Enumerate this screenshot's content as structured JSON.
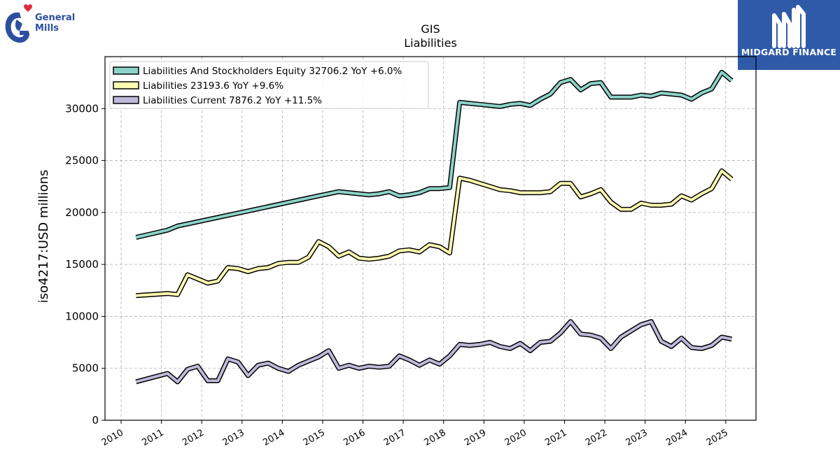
{
  "brand": {
    "left_logo_line1": "General",
    "left_logo_line2": "Mills",
    "right_logo_text": "MIDGARD FINANCE"
  },
  "chart_data": {
    "type": "line",
    "title": "GIS",
    "subtitle": "Liabilities",
    "xlabel": "",
    "ylabel": "iso4217:USD  millions",
    "xlim": [
      2009.6,
      2025.75
    ],
    "ylim": [
      0,
      35000
    ],
    "yticks": [
      0,
      5000,
      10000,
      15000,
      20000,
      25000,
      30000
    ],
    "ytick_labels": [
      "0",
      "5000",
      "10000",
      "15000",
      "20000",
      "25000",
      "30000"
    ],
    "xticks": [
      2010,
      2011,
      2012,
      2013,
      2014,
      2015,
      2016,
      2017,
      2018,
      2019,
      2020,
      2021,
      2022,
      2023,
      2024,
      2025
    ],
    "xtick_labels": [
      "2010",
      "2011",
      "2012",
      "2013",
      "2014",
      "2015",
      "2016",
      "2017",
      "2018",
      "2019",
      "2020",
      "2021",
      "2022",
      "2023",
      "2024",
      "2025"
    ],
    "grid": true,
    "legend_position": "top-left",
    "series": [
      {
        "name": "Liabilities And Stockholders Equity  32706.2 YoY +6.0%",
        "color": "#8dd3c7",
        "x": [
          2010.37,
          2011.15,
          2011.4,
          2011.65,
          2014.9,
          2015.4,
          2015.65,
          2015.9,
          2016.15,
          2016.4,
          2016.65,
          2016.9,
          2017.15,
          2017.4,
          2017.65,
          2017.9,
          2018.15,
          2018.4,
          2018.65,
          2018.9,
          2019.15,
          2019.4,
          2019.65,
          2019.9,
          2020.15,
          2020.4,
          2020.65,
          2020.9,
          2021.15,
          2021.4,
          2021.65,
          2021.9,
          2022.15,
          2022.4,
          2022.65,
          2022.9,
          2023.15,
          2023.4,
          2023.65,
          2023.9,
          2024.15,
          2024.4,
          2024.65,
          2024.9,
          2025.15
        ],
        "y": [
          17600,
          18300,
          18700,
          18900,
          21600,
          22000,
          21900,
          21800,
          21700,
          21800,
          22000,
          21600,
          21700,
          21900,
          22300,
          22300,
          22400,
          30600,
          30500,
          30400,
          30300,
          30200,
          30400,
          30500,
          30300,
          30900,
          31400,
          32500,
          32800,
          31800,
          32400,
          32500,
          31100,
          31100,
          31100,
          31300,
          31200,
          31500,
          31400,
          31300,
          30900,
          31500,
          31900,
          33500,
          32700
        ]
      },
      {
        "name": "Liabilities  23193.6 YoY +9.6%",
        "color": "#ffffb3",
        "x": [
          2010.37,
          2011.15,
          2011.4,
          2011.65,
          2011.9,
          2012.15,
          2012.4,
          2012.65,
          2012.9,
          2013.15,
          2013.4,
          2013.65,
          2013.9,
          2014.15,
          2014.4,
          2014.65,
          2014.9,
          2015.15,
          2015.4,
          2015.65,
          2015.9,
          2016.15,
          2016.4,
          2016.65,
          2016.9,
          2017.15,
          2017.4,
          2017.65,
          2017.9,
          2018.15,
          2018.4,
          2018.65,
          2018.9,
          2019.15,
          2019.4,
          2019.65,
          2019.9,
          2020.15,
          2020.4,
          2020.65,
          2020.9,
          2021.15,
          2021.4,
          2021.65,
          2021.9,
          2022.15,
          2022.4,
          2022.65,
          2022.9,
          2023.15,
          2023.4,
          2023.65,
          2023.9,
          2024.15,
          2024.4,
          2024.65,
          2024.9,
          2025.15
        ],
        "y": [
          12000,
          12200,
          12100,
          14000,
          13600,
          13200,
          13400,
          14700,
          14600,
          14300,
          14600,
          14700,
          15100,
          15200,
          15200,
          15700,
          17200,
          16700,
          15800,
          16200,
          15600,
          15500,
          15600,
          15800,
          16300,
          16400,
          16200,
          16900,
          16700,
          16100,
          23300,
          23100,
          22800,
          22500,
          22200,
          22100,
          21900,
          21900,
          21900,
          22000,
          22800,
          22800,
          21500,
          21800,
          22200,
          21000,
          20300,
          20300,
          20900,
          20700,
          20700,
          20800,
          21600,
          21200,
          21800,
          22300,
          24000,
          23200
        ]
      },
      {
        "name": "Liabilities Current  7876.2 YoY +11.5%",
        "color": "#bebada",
        "x": [
          2010.37,
          2011.15,
          2011.4,
          2011.65,
          2011.9,
          2012.15,
          2012.4,
          2012.65,
          2012.9,
          2013.15,
          2013.4,
          2013.65,
          2013.9,
          2014.15,
          2014.4,
          2014.65,
          2014.9,
          2015.15,
          2015.4,
          2015.65,
          2015.9,
          2016.15,
          2016.4,
          2016.65,
          2016.9,
          2017.15,
          2017.4,
          2017.65,
          2017.9,
          2018.15,
          2018.4,
          2018.65,
          2018.9,
          2019.15,
          2019.4,
          2019.65,
          2019.9,
          2020.15,
          2020.4,
          2020.65,
          2020.9,
          2021.15,
          2021.4,
          2021.65,
          2021.9,
          2022.15,
          2022.4,
          2022.65,
          2022.9,
          2023.15,
          2023.4,
          2023.65,
          2023.9,
          2024.15,
          2024.4,
          2024.65,
          2024.9,
          2025.15
        ],
        "y": [
          3700,
          4500,
          3700,
          4900,
          5200,
          3800,
          3800,
          5900,
          5600,
          4300,
          5300,
          5500,
          5000,
          4700,
          5300,
          5700,
          6100,
          6700,
          5000,
          5300,
          5000,
          5200,
          5100,
          5200,
          6200,
          5800,
          5300,
          5800,
          5400,
          6200,
          7300,
          7200,
          7300,
          7500,
          7100,
          6900,
          7400,
          6700,
          7500,
          7600,
          8400,
          9500,
          8300,
          8200,
          7900,
          6900,
          8000,
          8600,
          9200,
          9500,
          7600,
          7100,
          7900,
          7000,
          6900,
          7200,
          8000,
          7800
        ]
      }
    ]
  }
}
